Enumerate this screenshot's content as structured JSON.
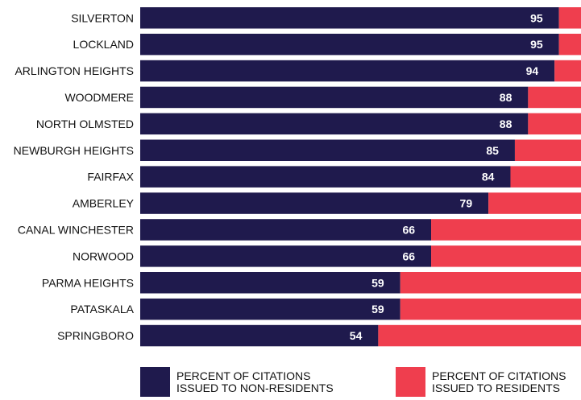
{
  "chart_data": {
    "type": "bar",
    "orientation": "horizontal",
    "stacked": true,
    "categories": [
      "SILVERTON",
      "LOCKLAND",
      "ARLINGTON HEIGHTS",
      "WOODMERE",
      "NORTH OLMSTED",
      "NEWBURGH HEIGHTS",
      "FAIRFAX",
      "AMBERLEY",
      "CANAL WINCHESTER",
      "NORWOOD",
      "PARMA HEIGHTS",
      "PATASKALA",
      "SPRINGBORO"
    ],
    "series": [
      {
        "name": "PERCENT OF CITATIONS ISSUED TO NON-RESIDENTS",
        "color": "#1f1a4d",
        "values": [
          95,
          95,
          94,
          88,
          88,
          85,
          84,
          79,
          66,
          66,
          59,
          59,
          54
        ]
      },
      {
        "name": "PERCENT OF CITATIONS ISSUED TO RESIDENTS",
        "color": "#ef3e4e",
        "values": [
          5,
          5,
          6,
          12,
          12,
          15,
          16,
          21,
          34,
          34,
          41,
          41,
          46
        ]
      }
    ],
    "xlim": [
      0,
      100
    ],
    "grid": false,
    "legend_position": "bottom",
    "data_labels": "first series only"
  }
}
